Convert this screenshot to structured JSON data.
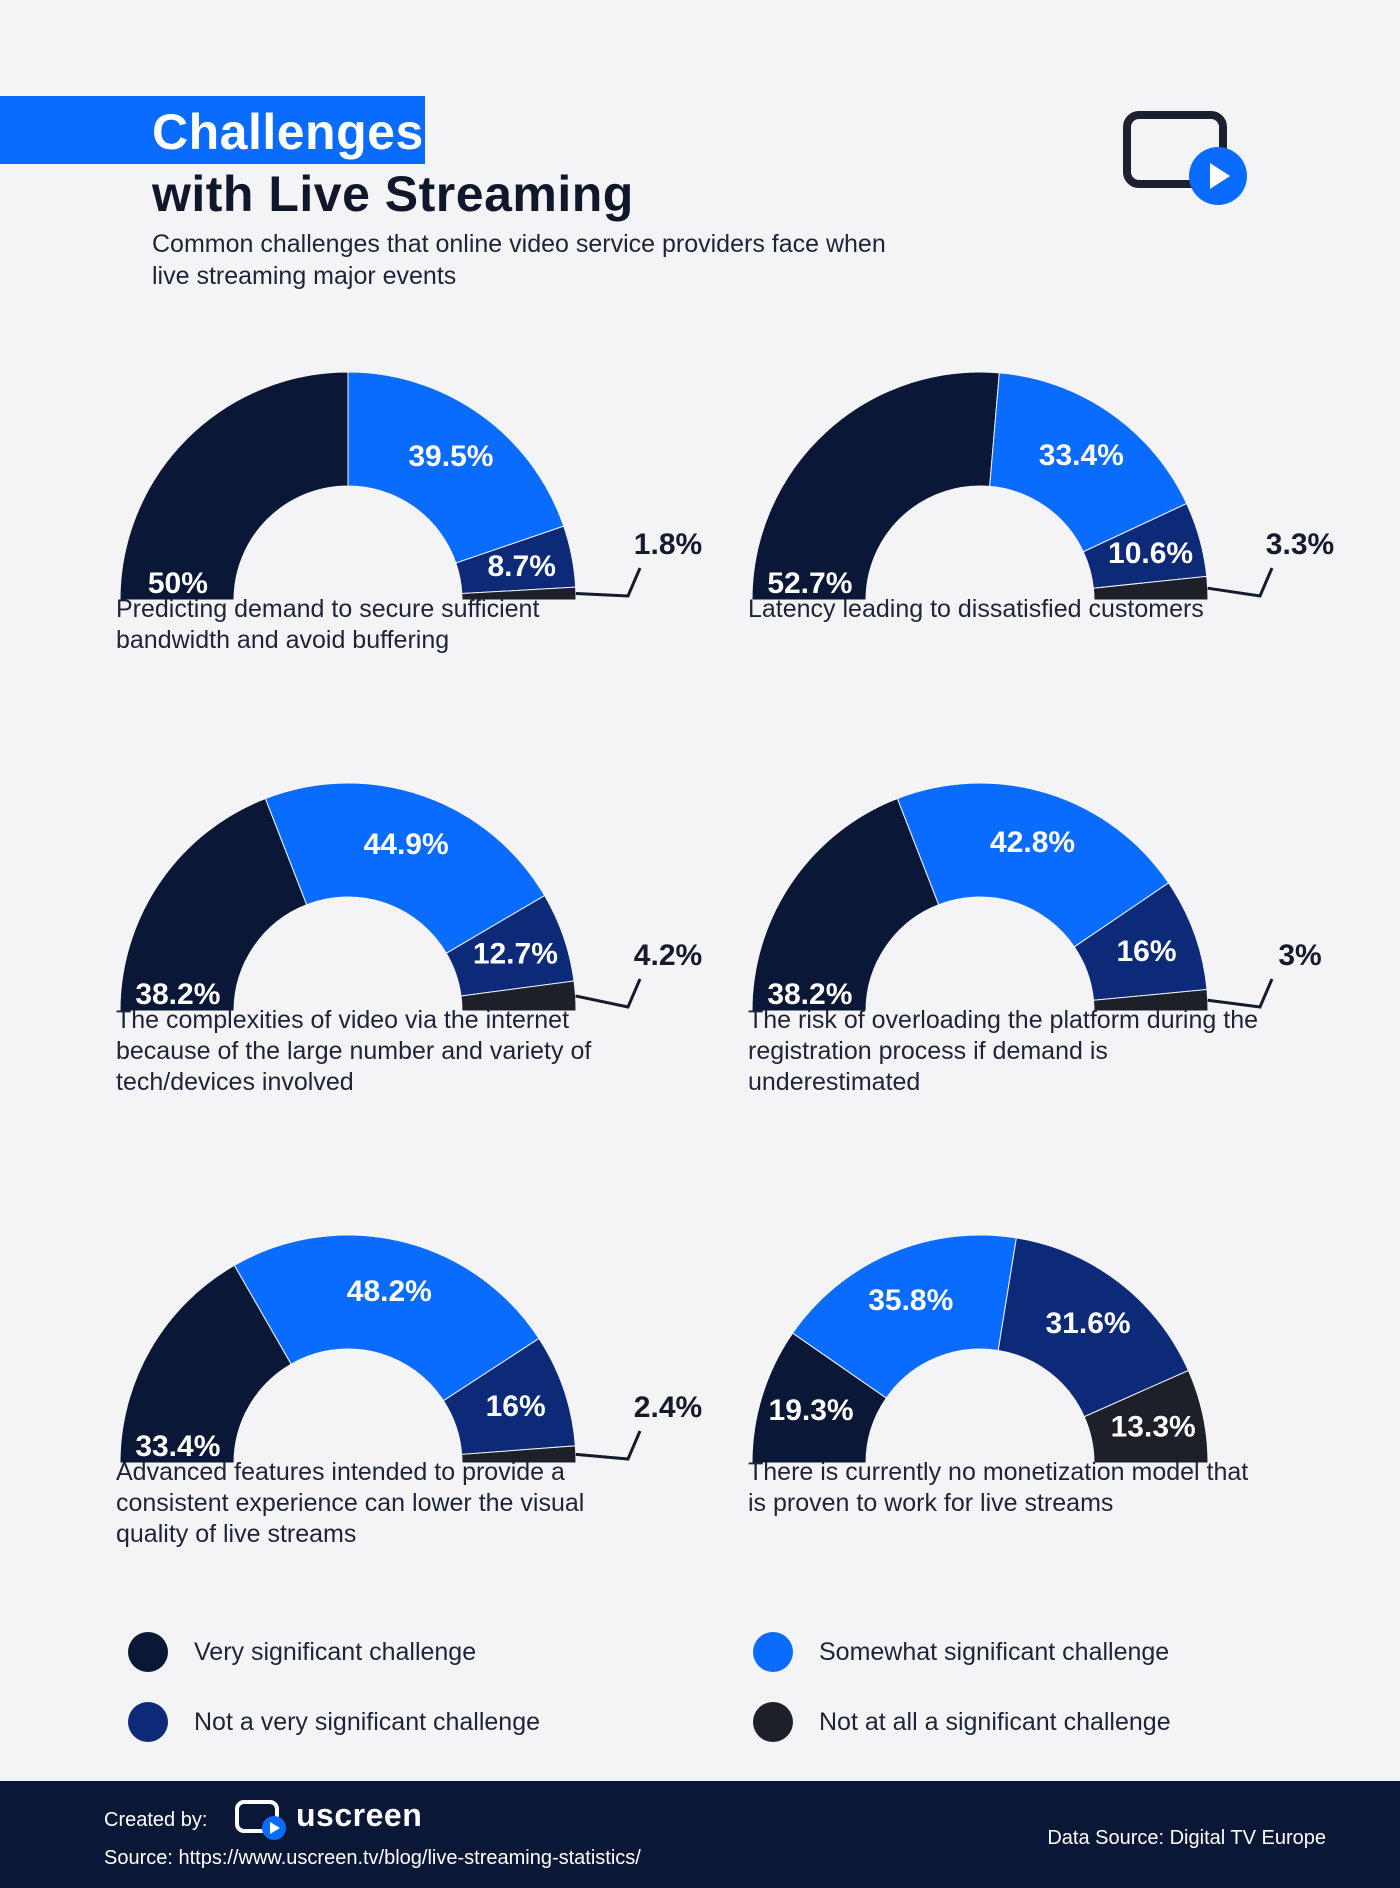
{
  "header": {
    "title_line1": "Challenges",
    "title_line2": "with Live Streaming",
    "subtitle": "Common challenges that online video service providers face when live streaming major events",
    "icon": "video-play-icon"
  },
  "colors": {
    "very": "#0b1736",
    "somewhat": "#0a6cff",
    "not_very": "#0d2a78",
    "not_at_all": "#1d1f29",
    "background": "#f4f4f7"
  },
  "chart_data": [
    {
      "type": "pie",
      "caption": "Predicting demand to secure sufficient bandwidth and avoid buffering",
      "categories": [
        "Very significant challenge",
        "Somewhat significant challenge",
        "Not a very significant challenge",
        "Not at all a significant challenge"
      ],
      "values": [
        50,
        39.5,
        8.7,
        1.8
      ],
      "labels": [
        "50%",
        "39.5%",
        "8.7%",
        "1.8%"
      ]
    },
    {
      "type": "pie",
      "caption": "Latency leading to dissatisfied customers",
      "categories": [
        "Very significant challenge",
        "Somewhat significant challenge",
        "Not a very significant challenge",
        "Not at all a significant challenge"
      ],
      "values": [
        52.7,
        33.4,
        10.6,
        3.3
      ],
      "labels": [
        "52.7%",
        "33.4%",
        "10.6%",
        "3.3%"
      ]
    },
    {
      "type": "pie",
      "caption": "The complexities of video via the internet because of the large number and variety of tech/devices involved",
      "categories": [
        "Very significant challenge",
        "Somewhat significant challenge",
        "Not a very significant challenge",
        "Not at all a significant challenge"
      ],
      "values": [
        38.2,
        44.9,
        12.7,
        4.2
      ],
      "labels": [
        "38.2%",
        "44.9%",
        "12.7%",
        "4.2%"
      ]
    },
    {
      "type": "pie",
      "caption": "The risk of overloading the platform during the registration process if demand is underestimated",
      "categories": [
        "Very significant challenge",
        "Somewhat significant challenge",
        "Not a very significant challenge",
        "Not at all a significant challenge"
      ],
      "values": [
        38.2,
        42.8,
        16,
        3
      ],
      "labels": [
        "38.2%",
        "42.8%",
        "16%",
        "3%"
      ]
    },
    {
      "type": "pie",
      "caption": "Advanced features intended to provide a consistent experience can lower the visual quality of live streams",
      "categories": [
        "Very significant challenge",
        "Somewhat significant challenge",
        "Not a very significant challenge",
        "Not at all a significant challenge"
      ],
      "values": [
        33.4,
        48.2,
        16,
        2.4
      ],
      "labels": [
        "33.4%",
        "48.2%",
        "16%",
        "2.4%"
      ]
    },
    {
      "type": "pie",
      "caption": "There is currently no monetization model that is proven to work for live streams",
      "categories": [
        "Very significant challenge",
        "Somewhat significant challenge",
        "Not a very significant challenge",
        "Not at all a significant challenge"
      ],
      "values": [
        19.3,
        35.8,
        31.6,
        13.3
      ],
      "labels": [
        "19.3%",
        "35.8%",
        "31.6%",
        "13.3%"
      ]
    }
  ],
  "legend": {
    "items": [
      {
        "label": "Very significant challenge",
        "color": "#0b1736"
      },
      {
        "label": "Somewhat significant challenge",
        "color": "#0a6cff"
      },
      {
        "label": "Not a very significant challenge",
        "color": "#0d2a78"
      },
      {
        "label": "Not at all a significant challenge",
        "color": "#1d1f29"
      }
    ]
  },
  "footer": {
    "created_by": "Created by:",
    "brand": "uscreen",
    "source": "Source: https://www.uscreen.tv/blog/live-streaming-statistics/",
    "data_source": "Data Source: Digital TV Europe"
  }
}
